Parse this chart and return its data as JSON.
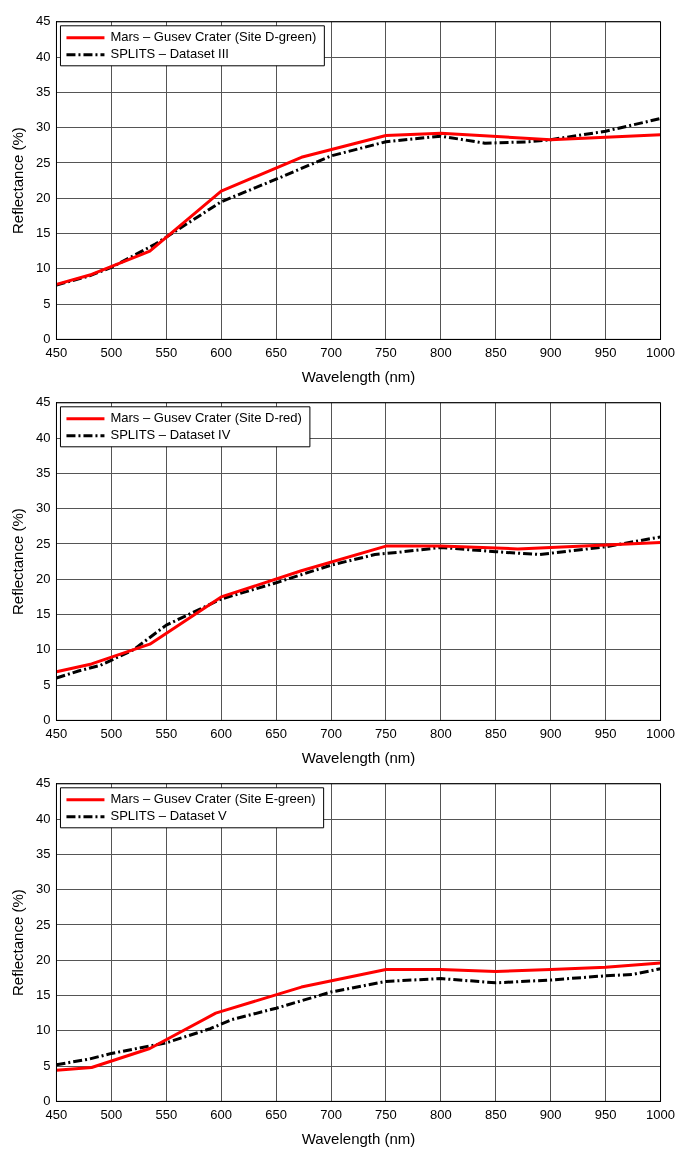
{
  "chart_data": [
    {
      "type": "line",
      "xlabel": "Wavelength (nm)",
      "ylabel": "Reflectance (%)",
      "xlim": [
        450,
        1000
      ],
      "ylim": [
        0,
        45
      ],
      "xticks": [
        450,
        500,
        550,
        600,
        650,
        700,
        750,
        800,
        850,
        900,
        950,
        1000
      ],
      "yticks": [
        0,
        5,
        10,
        15,
        20,
        25,
        30,
        35,
        40,
        45
      ],
      "grid": true,
      "legend": "top left",
      "series": [
        {
          "name": "Mars – Gusev Crater (Site D-green)",
          "color": "#ff0000",
          "line_style": "solid",
          "x": [
            450,
            482,
            535,
            600,
            673,
            750,
            800,
            900,
            1000
          ],
          "values": [
            7.8,
            9.2,
            12.5,
            21,
            25.8,
            28.9,
            29.2,
            28.3,
            29
          ]
        },
        {
          "name": "SPLITS – Dataset III",
          "color": "#000000",
          "line_style": "dashed",
          "x": [
            450,
            480,
            500,
            540,
            600,
            650,
            700,
            750,
            800,
            840,
            880,
            900,
            950,
            1000
          ],
          "values": [
            7.7,
            9,
            10.2,
            13.5,
            19.5,
            22.7,
            26,
            28,
            28.8,
            27.8,
            28,
            28.3,
            29.5,
            31.3
          ]
        }
      ]
    },
    {
      "type": "line",
      "xlabel": "Wavelength (nm)",
      "ylabel": "Reflectance (%)",
      "xlim": [
        450,
        1000
      ],
      "ylim": [
        0,
        45
      ],
      "xticks": [
        450,
        500,
        550,
        600,
        650,
        700,
        750,
        800,
        850,
        900,
        950,
        1000
      ],
      "yticks": [
        0,
        5,
        10,
        15,
        20,
        25,
        30,
        35,
        40,
        45
      ],
      "grid": true,
      "legend": "top left",
      "series": [
        {
          "name": "Mars – Gusev Crater (Site D-red)",
          "color": "#ff0000",
          "line_style": "solid",
          "x": [
            450,
            482,
            535,
            600,
            673,
            750,
            800,
            870,
            900,
            1000
          ],
          "values": [
            6.9,
            8,
            10.8,
            17.5,
            21.2,
            24.7,
            24.7,
            24.3,
            24.5,
            25.2
          ]
        },
        {
          "name": "SPLITS – Dataset IV",
          "color": "#000000",
          "line_style": "dashed",
          "x": [
            450,
            470,
            490,
            520,
            550,
            600,
            650,
            700,
            740,
            760,
            800,
            850,
            890,
            950,
            1000
          ],
          "values": [
            6,
            7,
            7.8,
            10,
            13.5,
            17.2,
            19.5,
            22,
            23.5,
            23.8,
            24.5,
            23.9,
            23.5,
            24.6,
            26
          ]
        }
      ]
    },
    {
      "type": "line",
      "xlabel": "Wavelength (nm)",
      "ylabel": "Reflectance (%)",
      "xlim": [
        450,
        1000
      ],
      "ylim": [
        0,
        45
      ],
      "xticks": [
        450,
        500,
        550,
        600,
        650,
        700,
        750,
        800,
        850,
        900,
        950,
        1000
      ],
      "yticks": [
        0,
        5,
        10,
        15,
        20,
        25,
        30,
        35,
        40,
        45
      ],
      "grid": true,
      "legend": "top left",
      "series": [
        {
          "name": "Mars – Gusev Crater (Site E-green)",
          "color": "#ff0000",
          "line_style": "solid",
          "x": [
            450,
            482,
            535,
            595,
            673,
            750,
            800,
            850,
            900,
            950,
            1000
          ],
          "values": [
            4.4,
            4.8,
            7.5,
            12.5,
            16.2,
            18.7,
            18.7,
            18.4,
            18.7,
            19,
            19.6
          ]
        },
        {
          "name": "SPLITS – Dataset V",
          "color": "#000000",
          "line_style": "dashed",
          "x": [
            450,
            480,
            500,
            550,
            590,
            610,
            650,
            700,
            750,
            800,
            850,
            900,
            950,
            975,
            1000
          ],
          "values": [
            5.2,
            6,
            6.8,
            8.3,
            10.3,
            11.6,
            13.2,
            15.5,
            17,
            17.4,
            16.8,
            17.2,
            17.8,
            18,
            18.8
          ]
        }
      ]
    }
  ]
}
